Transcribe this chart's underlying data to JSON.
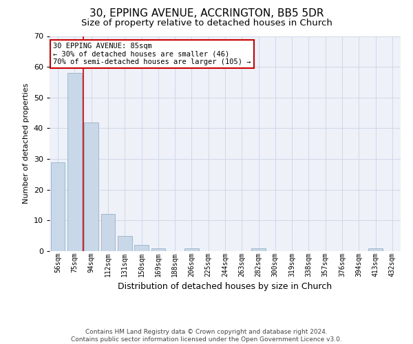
{
  "title1": "30, EPPING AVENUE, ACCRINGTON, BB5 5DR",
  "title2": "Size of property relative to detached houses in Church",
  "xlabel": "Distribution of detached houses by size in Church",
  "ylabel": "Number of detached properties",
  "categories": [
    "56sqm",
    "75sqm",
    "94sqm",
    "112sqm",
    "131sqm",
    "150sqm",
    "169sqm",
    "188sqm",
    "206sqm",
    "225sqm",
    "244sqm",
    "263sqm",
    "282sqm",
    "300sqm",
    "319sqm",
    "338sqm",
    "357sqm",
    "376sqm",
    "394sqm",
    "413sqm",
    "432sqm"
  ],
  "values": [
    29,
    58,
    42,
    12,
    5,
    2,
    1,
    0,
    1,
    0,
    0,
    0,
    1,
    0,
    0,
    0,
    0,
    0,
    0,
    1,
    0
  ],
  "bar_color": "#c8d8e8",
  "bar_edge_color": "#a0b8cc",
  "vline_x": 1.5,
  "vline_color": "#cc0000",
  "annotation_text": "30 EPPING AVENUE: 85sqm\n← 30% of detached houses are smaller (46)\n70% of semi-detached houses are larger (105) →",
  "annotation_box_color": "#ffffff",
  "annotation_box_edge": "#cc0000",
  "ylim": [
    0,
    70
  ],
  "yticks": [
    0,
    10,
    20,
    30,
    40,
    50,
    60,
    70
  ],
  "grid_color": "#d0d8e8",
  "bg_color": "#eef2f8",
  "footer": "Contains HM Land Registry data © Crown copyright and database right 2024.\nContains public sector information licensed under the Open Government Licence v3.0.",
  "title1_fontsize": 11,
  "title2_fontsize": 9.5,
  "xlabel_fontsize": 9,
  "ylabel_fontsize": 8,
  "footer_fontsize": 6.5,
  "tick_fontsize": 7
}
